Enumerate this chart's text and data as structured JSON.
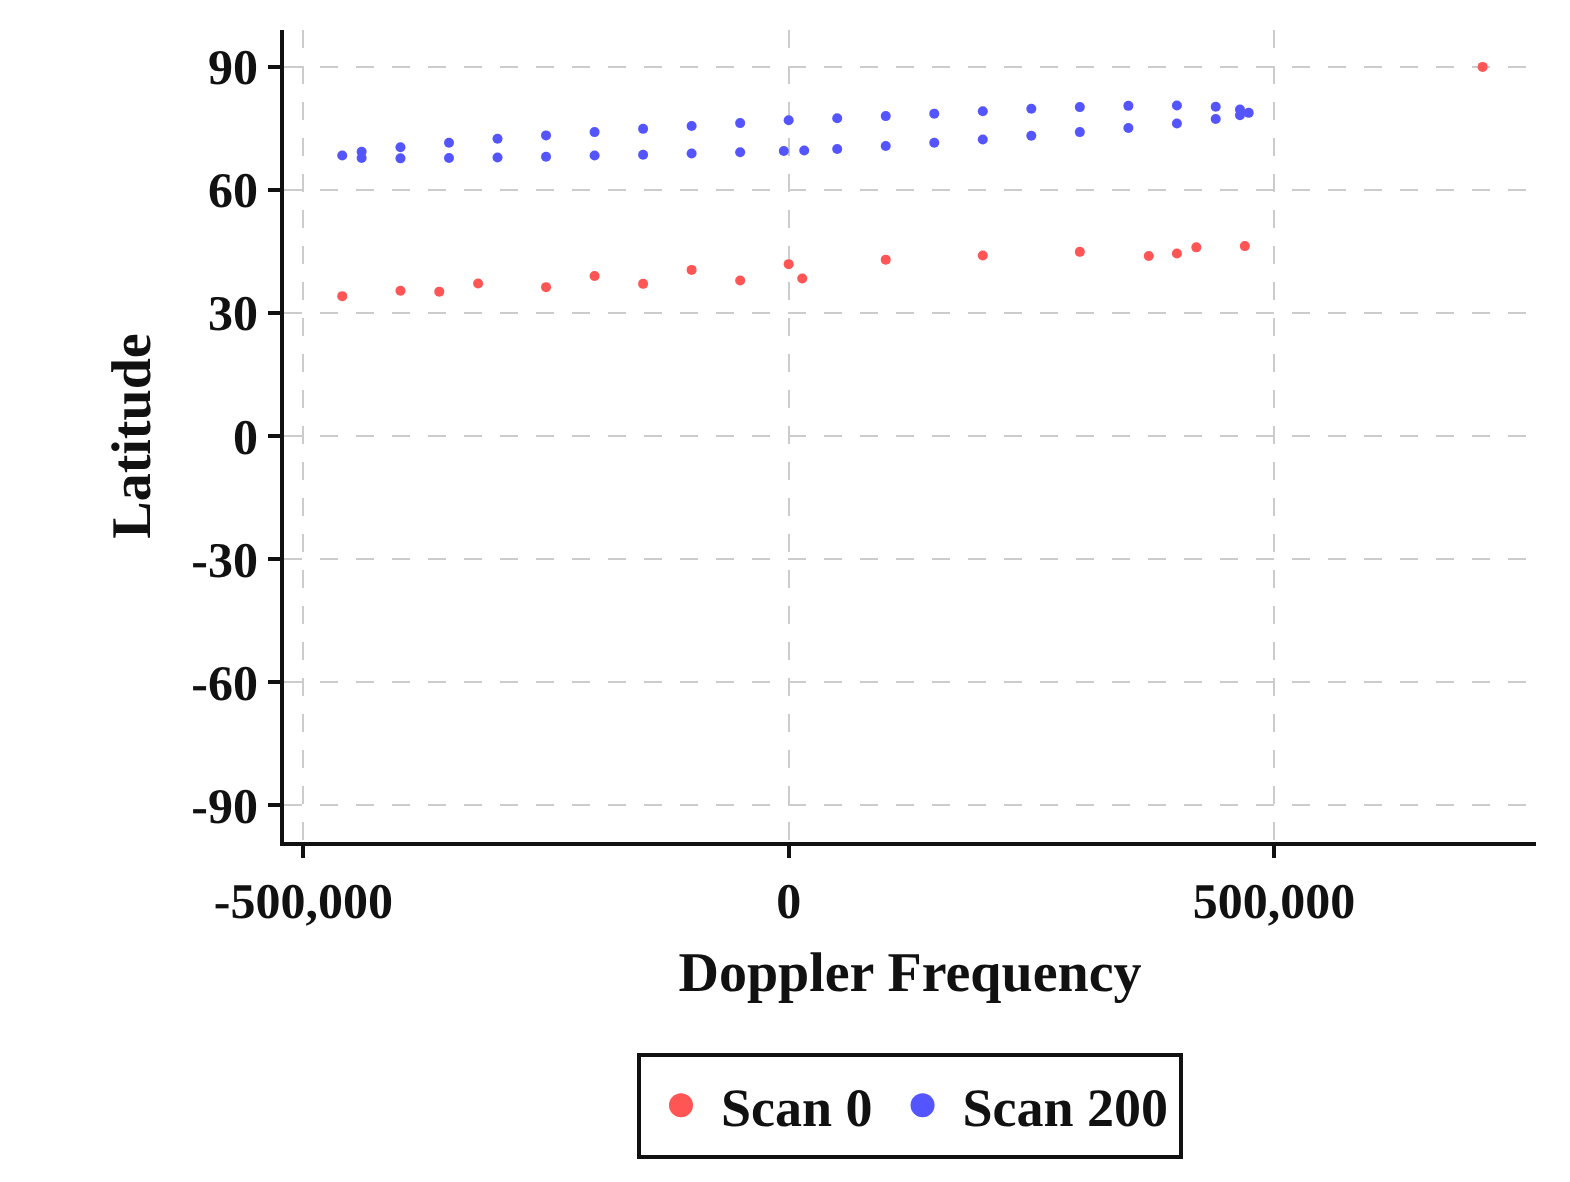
{
  "chart_data": {
    "type": "scatter",
    "xlabel": "Doppler Frequency",
    "ylabel": "Latitude",
    "xlim": [
      -520000,
      770000
    ],
    "ylim": [
      -99,
      99
    ],
    "xticks": [
      {
        "value": -500000,
        "label": "-500,000"
      },
      0,
      {
        "value": 500000,
        "label": "500,000"
      }
    ],
    "yticks": [
      -90,
      -60,
      -30,
      0,
      30,
      60,
      90
    ],
    "grid": true,
    "legend": "bottom",
    "marker": "circle",
    "series": [
      {
        "name": "Scan 0",
        "color": "#ff5555",
        "x": [
          14000,
          -50000,
          -150000,
          -250000,
          -360000,
          -460000,
          -400000,
          -320000,
          -200000,
          -100000,
          0,
          100000,
          200000,
          300000,
          420000,
          470000,
          400000,
          371000,
          715000
        ],
        "values": [
          38.4,
          37.9,
          37.1,
          36.3,
          35.2,
          34.1,
          35.4,
          37.2,
          39.0,
          40.5,
          41.9,
          43.0,
          44.0,
          44.9,
          46.0,
          46.3,
          44.5,
          43.9,
          90
        ]
      },
      {
        "name": "Scan 200",
        "color": "#5555ff",
        "x": [
          16000,
          50000,
          100000,
          150000,
          200000,
          250000,
          300000,
          350000,
          400000,
          440000,
          465000,
          474000,
          465000,
          440000,
          400000,
          350000,
          300000,
          250000,
          200000,
          150000,
          100000,
          50000,
          0,
          -50000,
          -100000,
          -150000,
          -200000,
          -250000,
          -300000,
          -350000,
          -400000,
          -440000,
          -460000,
          -440000,
          -400000,
          -350000,
          -300000,
          -250000,
          -200000,
          -150000,
          -100000,
          -50000,
          -5000
        ],
        "values": [
          69.6,
          70.0,
          70.7,
          71.5,
          72.3,
          73.2,
          74.1,
          75.1,
          76.2,
          77.3,
          78.2,
          78.8,
          79.6,
          80.3,
          80.6,
          80.5,
          80.2,
          79.8,
          79.2,
          78.6,
          78.0,
          77.5,
          77.0,
          76.3,
          75.6,
          74.9,
          74.1,
          73.3,
          72.5,
          71.5,
          70.4,
          69.3,
          68.4,
          67.8,
          67.7,
          67.8,
          67.9,
          68.1,
          68.4,
          68.6,
          68.9,
          69.2,
          69.5
        ]
      }
    ]
  }
}
